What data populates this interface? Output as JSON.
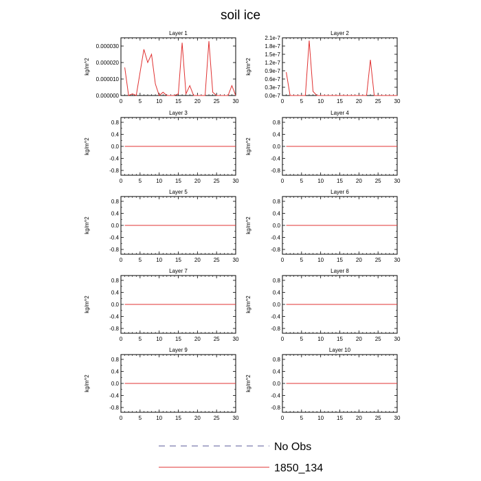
{
  "figure": {
    "title": "soil ice",
    "legend": [
      {
        "label": "No Obs",
        "color": "#5a5a9a",
        "dash": "dashed"
      },
      {
        "label": "1850_134",
        "color": "#e03030",
        "dash": "solid"
      }
    ]
  },
  "chart_data": [
    {
      "type": "line",
      "title": "Layer 1",
      "ylabel": "kg/m^2",
      "xlim": [
        0,
        30
      ],
      "ylim": [
        0,
        3.5e-05
      ],
      "xticks": [
        0,
        5,
        10,
        15,
        20,
        25,
        30
      ],
      "yticks": [
        0,
        1e-05,
        2e-05,
        3e-05
      ],
      "ytick_labels": [
        "0.000000",
        "0.000010",
        "0.000020",
        "0.000030"
      ],
      "x": [
        1,
        2,
        3,
        4,
        5,
        6,
        7,
        8,
        9,
        10,
        11,
        12,
        13,
        14,
        15,
        16,
        17,
        18,
        19,
        20,
        21,
        22,
        23,
        24,
        25,
        26,
        27,
        28,
        29,
        30
      ],
      "series": [
        {
          "name": "1850_134",
          "color": "#e03030",
          "values": [
            1.7e-05,
            0,
            1e-06,
            0,
            1.4e-05,
            2.8e-05,
            2e-05,
            2.5e-05,
            7e-06,
            0,
            2e-06,
            0,
            0,
            0,
            1e-06,
            3.2e-05,
            1e-06,
            6e-06,
            0,
            0,
            0,
            0,
            3.3e-05,
            2e-06,
            0,
            0,
            0,
            0,
            6e-06,
            0
          ]
        }
      ]
    },
    {
      "type": "line",
      "title": "Layer 2",
      "ylabel": "kg/m^2",
      "xlim": [
        0,
        30
      ],
      "ylim": [
        0,
        2.1e-07
      ],
      "xticks": [
        0,
        5,
        10,
        15,
        20,
        25,
        30
      ],
      "yticks": [
        0,
        3e-08,
        6e-08,
        9e-08,
        1.2e-07,
        1.5e-07,
        1.8e-07,
        2.1e-07
      ],
      "ytick_labels": [
        "0.0e-7",
        "0.3e-7",
        "0.6e-7",
        "0.9e-7",
        "1.2e-7",
        "1.5e-7",
        "1.8e-7",
        "2.1e-7"
      ],
      "x": [
        1,
        2,
        3,
        4,
        5,
        6,
        7,
        8,
        9,
        10,
        11,
        12,
        13,
        14,
        15,
        16,
        17,
        18,
        19,
        20,
        21,
        22,
        23,
        24,
        25,
        26,
        27,
        28,
        29,
        30
      ],
      "series": [
        {
          "name": "1850_134",
          "color": "#e03030",
          "values": [
            8.5e-08,
            0,
            0,
            0,
            0,
            0,
            2e-07,
            1.5e-08,
            0,
            0,
            0,
            0,
            0,
            0,
            0,
            0,
            0,
            0,
            0,
            0,
            0,
            0,
            1.3e-07,
            0,
            0,
            0,
            0,
            0,
            0,
            0
          ]
        }
      ]
    },
    {
      "type": "line",
      "title": "Layer 3",
      "ylabel": "kg/m^2",
      "xlim": [
        0,
        30
      ],
      "ylim": [
        -0.96,
        0.96
      ],
      "xticks": [
        0,
        5,
        10,
        15,
        20,
        25,
        30
      ],
      "yticks": [
        -0.8,
        -0.4,
        0,
        0.4,
        0.8
      ],
      "ytick_labels": [
        "-0.8",
        "-0.4",
        "0.0",
        "0.4",
        "0.8"
      ],
      "minor_yticks": [
        -0.6,
        -0.2,
        0.2,
        0.6
      ],
      "x": [
        1,
        30
      ],
      "series": [
        {
          "name": "1850_134",
          "color": "#e03030",
          "values": [
            0,
            0
          ]
        }
      ]
    },
    {
      "type": "line",
      "title": "Layer 4",
      "ylabel": "kg/m^2",
      "xlim": [
        0,
        30
      ],
      "ylim": [
        -0.96,
        0.96
      ],
      "xticks": [
        0,
        5,
        10,
        15,
        20,
        25,
        30
      ],
      "yticks": [
        -0.8,
        -0.4,
        0,
        0.4,
        0.8
      ],
      "ytick_labels": [
        "-0.8",
        "-0.4",
        "0.0",
        "0.4",
        "0.8"
      ],
      "minor_yticks": [
        -0.6,
        -0.2,
        0.2,
        0.6
      ],
      "x": [
        1,
        30
      ],
      "series": [
        {
          "name": "1850_134",
          "color": "#e03030",
          "values": [
            0,
            0
          ]
        }
      ]
    },
    {
      "type": "line",
      "title": "Layer 5",
      "ylabel": "kg/m^2",
      "xlim": [
        0,
        30
      ],
      "ylim": [
        -0.96,
        0.96
      ],
      "xticks": [
        0,
        5,
        10,
        15,
        20,
        25,
        30
      ],
      "yticks": [
        -0.8,
        -0.4,
        0,
        0.4,
        0.8
      ],
      "ytick_labels": [
        "-0.8",
        "-0.4",
        "0.0",
        "0.4",
        "0.8"
      ],
      "minor_yticks": [
        -0.6,
        -0.2,
        0.2,
        0.6
      ],
      "x": [
        1,
        30
      ],
      "series": [
        {
          "name": "1850_134",
          "color": "#e03030",
          "values": [
            0,
            0
          ]
        }
      ]
    },
    {
      "type": "line",
      "title": "Layer 6",
      "ylabel": "kg/m^2",
      "xlim": [
        0,
        30
      ],
      "ylim": [
        -0.96,
        0.96
      ],
      "xticks": [
        0,
        5,
        10,
        15,
        20,
        25,
        30
      ],
      "yticks": [
        -0.8,
        -0.4,
        0,
        0.4,
        0.8
      ],
      "ytick_labels": [
        "-0.8",
        "-0.4",
        "0.0",
        "0.4",
        "0.8"
      ],
      "minor_yticks": [
        -0.6,
        -0.2,
        0.2,
        0.6
      ],
      "x": [
        1,
        30
      ],
      "series": [
        {
          "name": "1850_134",
          "color": "#e03030",
          "values": [
            0,
            0
          ]
        }
      ]
    },
    {
      "type": "line",
      "title": "Layer 7",
      "ylabel": "kg/m^2",
      "xlim": [
        0,
        30
      ],
      "ylim": [
        -0.96,
        0.96
      ],
      "xticks": [
        0,
        5,
        10,
        15,
        20,
        25,
        30
      ],
      "yticks": [
        -0.8,
        -0.4,
        0,
        0.4,
        0.8
      ],
      "ytick_labels": [
        "-0.8",
        "-0.4",
        "0.0",
        "0.4",
        "0.8"
      ],
      "minor_yticks": [
        -0.6,
        -0.2,
        0.2,
        0.6
      ],
      "x": [
        1,
        30
      ],
      "series": [
        {
          "name": "1850_134",
          "color": "#e03030",
          "values": [
            0,
            0
          ]
        }
      ]
    },
    {
      "type": "line",
      "title": "Layer 8",
      "ylabel": "kg/m^2",
      "xlim": [
        0,
        30
      ],
      "ylim": [
        -0.96,
        0.96
      ],
      "xticks": [
        0,
        5,
        10,
        15,
        20,
        25,
        30
      ],
      "yticks": [
        -0.8,
        -0.4,
        0,
        0.4,
        0.8
      ],
      "ytick_labels": [
        "-0.8",
        "-0.4",
        "0.0",
        "0.4",
        "0.8"
      ],
      "minor_yticks": [
        -0.6,
        -0.2,
        0.2,
        0.6
      ],
      "x": [
        1,
        30
      ],
      "series": [
        {
          "name": "1850_134",
          "color": "#e03030",
          "values": [
            0,
            0
          ]
        }
      ]
    },
    {
      "type": "line",
      "title": "Layer 9",
      "ylabel": "kg/m^2",
      "xlim": [
        0,
        30
      ],
      "ylim": [
        -0.96,
        0.96
      ],
      "xticks": [
        0,
        5,
        10,
        15,
        20,
        25,
        30
      ],
      "yticks": [
        -0.8,
        -0.4,
        0,
        0.4,
        0.8
      ],
      "ytick_labels": [
        "-0.8",
        "-0.4",
        "0.0",
        "0.4",
        "0.8"
      ],
      "minor_yticks": [
        -0.6,
        -0.2,
        0.2,
        0.6
      ],
      "x": [
        1,
        30
      ],
      "series": [
        {
          "name": "1850_134",
          "color": "#e03030",
          "values": [
            0,
            0
          ]
        }
      ]
    },
    {
      "type": "line",
      "title": "Layer 10",
      "ylabel": "kg/m^2",
      "xlim": [
        0,
        30
      ],
      "ylim": [
        -0.96,
        0.96
      ],
      "xticks": [
        0,
        5,
        10,
        15,
        20,
        25,
        30
      ],
      "yticks": [
        -0.8,
        -0.4,
        0,
        0.4,
        0.8
      ],
      "ytick_labels": [
        "-0.8",
        "-0.4",
        "0.0",
        "0.4",
        "0.8"
      ],
      "minor_yticks": [
        -0.6,
        -0.2,
        0.2,
        0.6
      ],
      "x": [
        1,
        30
      ],
      "series": [
        {
          "name": "1850_134",
          "color": "#e03030",
          "values": [
            0,
            0
          ]
        }
      ]
    }
  ]
}
